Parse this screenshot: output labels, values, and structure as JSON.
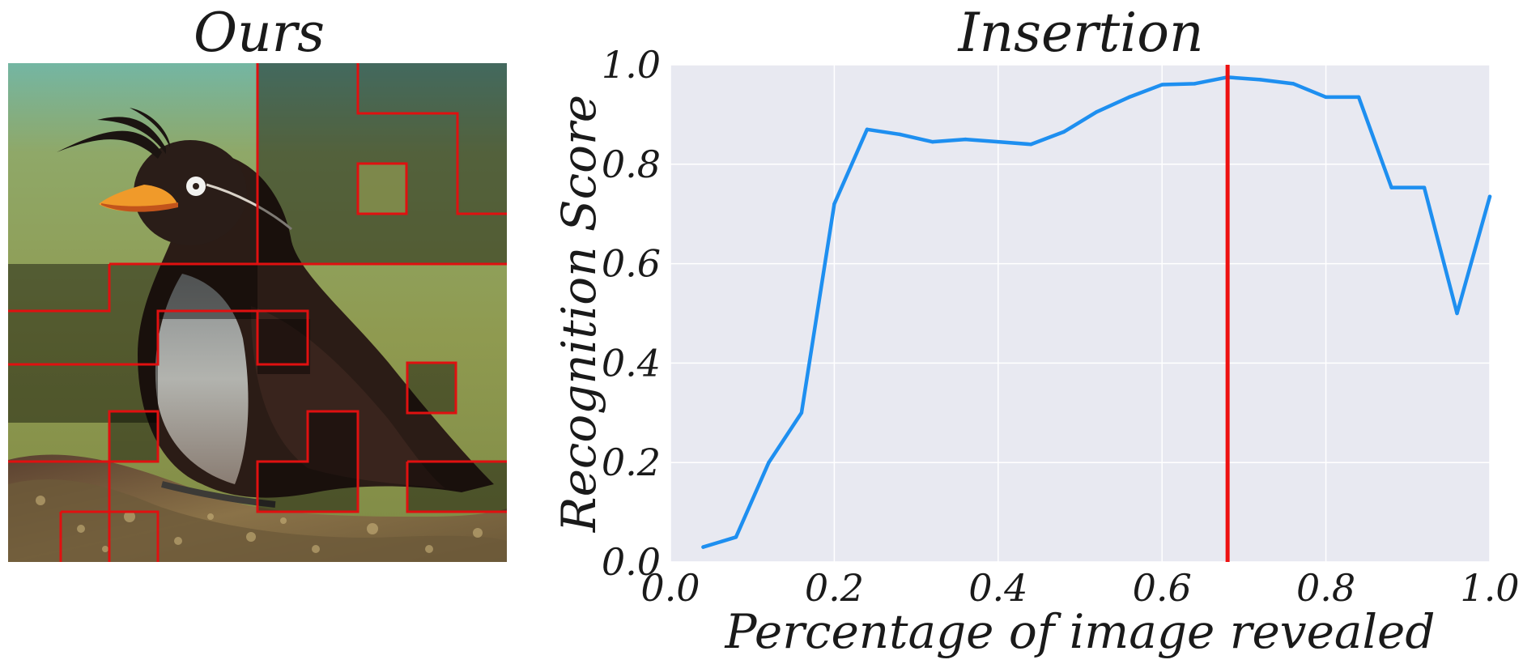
{
  "left_panel": {
    "title": "Ours",
    "image": "crested auklet bird photo with highlighted grid regions",
    "highlight_color": "#e01010"
  },
  "chart_data": {
    "type": "line",
    "title": "Insertion",
    "xlabel": "Percentage of image revealed",
    "ylabel": "Recognition Score",
    "xlim": [
      0.0,
      1.0
    ],
    "ylim": [
      0.0,
      1.0
    ],
    "xticks": [
      "0.0",
      "0.2",
      "0.4",
      "0.6",
      "0.8",
      "1.0"
    ],
    "yticks": [
      "0.0",
      "0.2",
      "0.4",
      "0.6",
      "0.8",
      "1.0"
    ],
    "grid": true,
    "background": "#e8e9f1",
    "series": [
      {
        "color": "#1e8ff0",
        "x": [
          0.04,
          0.08,
          0.12,
          0.16,
          0.2,
          0.24,
          0.28,
          0.32,
          0.36,
          0.4,
          0.44,
          0.48,
          0.52,
          0.56,
          0.6,
          0.64,
          0.68,
          0.72,
          0.76,
          0.8,
          0.84,
          0.88,
          0.92,
          0.96,
          1.0
        ],
        "values": [
          0.03,
          0.05,
          0.2,
          0.3,
          0.72,
          0.87,
          0.86,
          0.845,
          0.85,
          0.845,
          0.84,
          0.865,
          0.905,
          0.935,
          0.96,
          0.962,
          0.975,
          0.97,
          0.962,
          0.935,
          0.935,
          0.753,
          0.753,
          0.5,
          0.735
        ]
      }
    ],
    "vline": {
      "x": 0.68,
      "color": "#ee1111"
    }
  }
}
